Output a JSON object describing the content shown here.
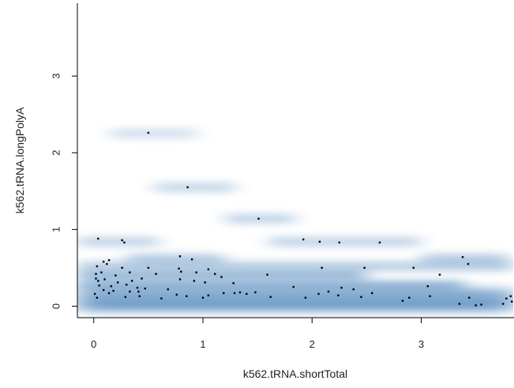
{
  "chart_data": {
    "type": "scatter",
    "subtype": "smoothed-density-scatter",
    "title": "",
    "xlabel": "k562.tRNA.shortTotal",
    "ylabel": "k562.tRNA.longPolyA",
    "xlim": [
      -0.15,
      3.85
    ],
    "ylim": [
      -0.15,
      3.95
    ],
    "xticks": [
      0,
      1,
      2,
      3
    ],
    "yticks": [
      0,
      1,
      2,
      3
    ],
    "grid": false,
    "legend": "none",
    "density_color": "#2e6fae",
    "point_color": "#000000",
    "density_bands": [
      {
        "y": 0.02,
        "x_from": -0.15,
        "x_to": 3.85,
        "strength": 0.95
      },
      {
        "y": 0.15,
        "x_from": -0.15,
        "x_to": 3.85,
        "strength": 0.75
      },
      {
        "y": 0.27,
        "x_from": -0.15,
        "x_to": 3.4,
        "strength": 0.5
      },
      {
        "y": 0.4,
        "x_from": -0.15,
        "x_to": 2.5,
        "strength": 0.5
      },
      {
        "y": 0.52,
        "x_from": -0.15,
        "x_to": 3.85,
        "strength": 0.35
      },
      {
        "y": 0.62,
        "x_from": 0.3,
        "x_to": 1.2,
        "strength": 0.35
      },
      {
        "y": 0.62,
        "x_from": 3.0,
        "x_to": 3.8,
        "strength": 0.35
      },
      {
        "y": 0.84,
        "x_from": -0.15,
        "x_to": 0.6,
        "strength": 0.3
      },
      {
        "y": 0.84,
        "x_from": 1.6,
        "x_to": 3.0,
        "strength": 0.3
      },
      {
        "y": 1.14,
        "x_from": 1.2,
        "x_to": 1.85,
        "strength": 0.3
      },
      {
        "y": 1.55,
        "x_from": 0.55,
        "x_to": 1.3,
        "strength": 0.28
      },
      {
        "y": 2.25,
        "x_from": 0.15,
        "x_to": 0.95,
        "strength": 0.22
      }
    ],
    "points": [
      [
        0.5,
        2.26
      ],
      [
        0.86,
        1.55
      ],
      [
        1.51,
        1.14
      ],
      [
        0.04,
        0.88
      ],
      [
        0.26,
        0.86
      ],
      [
        0.28,
        0.83
      ],
      [
        1.92,
        0.87
      ],
      [
        2.07,
        0.84
      ],
      [
        2.25,
        0.83
      ],
      [
        2.62,
        0.83
      ],
      [
        0.09,
        0.58
      ],
      [
        0.14,
        0.6
      ],
      [
        0.79,
        0.65
      ],
      [
        0.9,
        0.61
      ],
      [
        3.38,
        0.64
      ],
      [
        3.43,
        0.55
      ],
      [
        0.03,
        0.52
      ],
      [
        0.12,
        0.55
      ],
      [
        0.26,
        0.5
      ],
      [
        0.5,
        0.5
      ],
      [
        0.78,
        0.49
      ],
      [
        1.05,
        0.48
      ],
      [
        2.09,
        0.5
      ],
      [
        2.48,
        0.5
      ],
      [
        2.93,
        0.5
      ],
      [
        0.02,
        0.42
      ],
      [
        0.07,
        0.44
      ],
      [
        0.2,
        0.4
      ],
      [
        0.33,
        0.44
      ],
      [
        0.57,
        0.42
      ],
      [
        0.8,
        0.45
      ],
      [
        0.94,
        0.44
      ],
      [
        1.11,
        0.42
      ],
      [
        1.17,
        0.38
      ],
      [
        1.59,
        0.41
      ],
      [
        3.17,
        0.41
      ],
      [
        0.02,
        0.36
      ],
      [
        0.04,
        0.33
      ],
      [
        0.1,
        0.35
      ],
      [
        0.22,
        0.31
      ],
      [
        0.35,
        0.33
      ],
      [
        0.44,
        0.36
      ],
      [
        0.79,
        0.35
      ],
      [
        0.92,
        0.33
      ],
      [
        1.02,
        0.31
      ],
      [
        1.28,
        0.3
      ],
      [
        0.05,
        0.27
      ],
      [
        0.16,
        0.26
      ],
      [
        0.3,
        0.28
      ],
      [
        0.4,
        0.24
      ],
      [
        0.47,
        0.23
      ],
      [
        0.68,
        0.22
      ],
      [
        1.83,
        0.25
      ],
      [
        2.27,
        0.24
      ],
      [
        2.38,
        0.22
      ],
      [
        3.06,
        0.26
      ],
      [
        0.09,
        0.21
      ],
      [
        0.14,
        0.17
      ],
      [
        0.18,
        0.2
      ],
      [
        0.33,
        0.19
      ],
      [
        0.41,
        0.19
      ],
      [
        0.76,
        0.15
      ],
      [
        1.19,
        0.17
      ],
      [
        1.29,
        0.17
      ],
      [
        1.34,
        0.18
      ],
      [
        1.4,
        0.16
      ],
      [
        1.48,
        0.18
      ],
      [
        2.06,
        0.16
      ],
      [
        2.15,
        0.19
      ],
      [
        2.24,
        0.14
      ],
      [
        2.55,
        0.17
      ],
      [
        0.01,
        0.16
      ],
      [
        0.03,
        0.11
      ],
      [
        0.29,
        0.12
      ],
      [
        0.42,
        0.13
      ],
      [
        0.62,
        0.1
      ],
      [
        0.85,
        0.13
      ],
      [
        1.0,
        0.11
      ],
      [
        1.05,
        0.14
      ],
      [
        1.62,
        0.12
      ],
      [
        1.94,
        0.11
      ],
      [
        2.45,
        0.12
      ],
      [
        2.89,
        0.11
      ],
      [
        3.08,
        0.13
      ],
      [
        3.44,
        0.11
      ],
      [
        2.83,
        0.07
      ],
      [
        3.35,
        0.03
      ],
      [
        3.5,
        0.01
      ],
      [
        3.55,
        0.02
      ],
      [
        3.75,
        0.03
      ],
      [
        3.78,
        0.1
      ],
      [
        3.82,
        0.13
      ],
      [
        3.83,
        0.06
      ]
    ]
  }
}
